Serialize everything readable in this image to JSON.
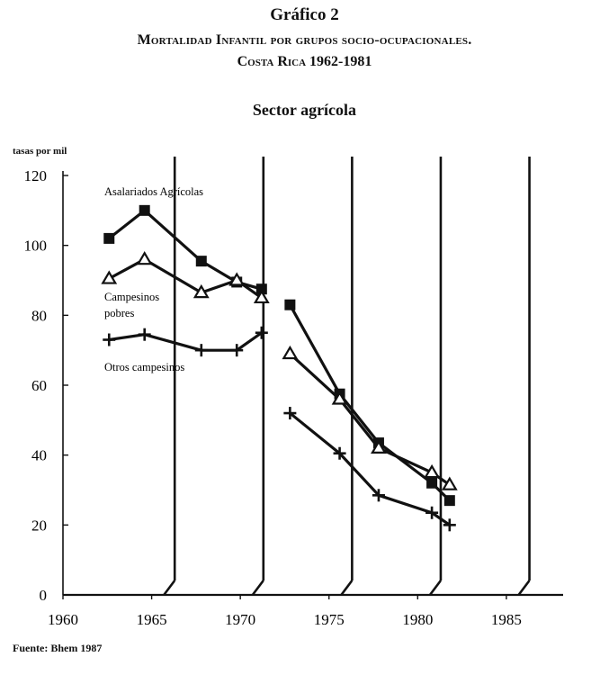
{
  "figure": {
    "title": "Gráfico 2",
    "subtitle_line1": "Mortalidad Infantil por grupos socio-ocupacionales.",
    "subtitle_line2": "Costa Rica 1962-1981",
    "panel_title": "Sector agrícola",
    "source": "Fuente: Bhem 1987"
  },
  "chart_data": {
    "type": "line",
    "title": "Sector agrícola",
    "ylabel": "tasas por mil",
    "xlabel": "",
    "xlim": [
      1960,
      1988
    ],
    "ylim": [
      0,
      120
    ],
    "xticks": [
      1960,
      1965,
      1970,
      1975,
      1980,
      1985
    ],
    "yticks": [
      0,
      20,
      40,
      60,
      80,
      100,
      120
    ],
    "grid": "vertical broken bars at 1966.3, 1971.3, 1976.3, 1981.3, 1986.3",
    "series": [
      {
        "name": "Asalariados Agrícolas",
        "marker": "square",
        "x": [
          1962.6,
          1964.6,
          1967.8,
          1969.8,
          1971.2,
          1972.8,
          1975.6,
          1977.8,
          1980.8,
          1981.8
        ],
        "y": [
          102,
          110,
          95.5,
          89.5,
          87.5,
          83,
          57.5,
          43.5,
          32,
          27
        ]
      },
      {
        "name": "Campesinos pobres",
        "marker": "triangle",
        "x": [
          1962.6,
          1964.6,
          1967.8,
          1969.8,
          1971.2,
          1972.8,
          1975.6,
          1977.8,
          1980.8,
          1981.8
        ],
        "y": [
          90.5,
          96,
          86.5,
          90,
          85,
          69,
          56,
          42,
          35,
          31.5
        ]
      },
      {
        "name": "Otros campesinos",
        "marker": "plus",
        "x": [
          1962.6,
          1964.6,
          1967.8,
          1969.8,
          1971.2,
          1972.8,
          1975.6,
          1977.8,
          1980.8,
          1981.8
        ],
        "y": [
          73,
          74.5,
          70,
          70,
          75,
          52,
          40.5,
          28.5,
          23.5,
          20
        ]
      }
    ]
  }
}
